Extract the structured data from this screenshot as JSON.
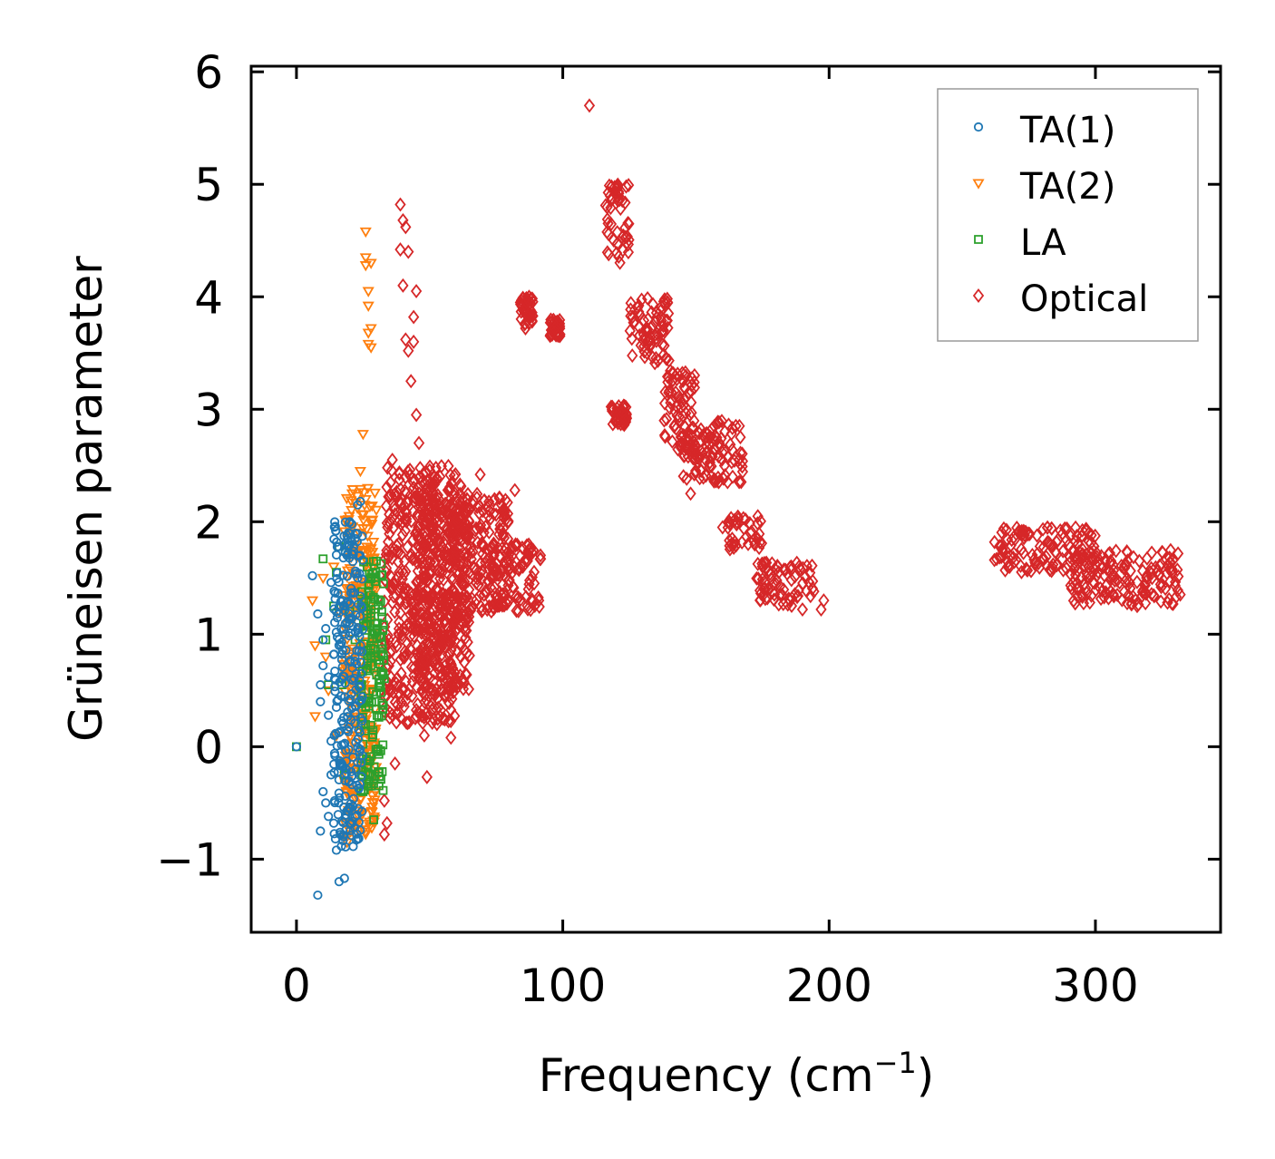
{
  "chart_data": {
    "type": "scatter",
    "title": "",
    "xlabel": "Frequency (cm",
    "xlabel_sup": "−1",
    "xlabel_close": ")",
    "ylabel": "Grüneisen parameter",
    "xlim": [
      -17,
      347
    ],
    "ylim": [
      -1.65,
      6.05
    ],
    "xticks": [
      0,
      100,
      200,
      300
    ],
    "xtick_labels": [
      "0",
      "100",
      "200",
      "300"
    ],
    "yticks": [
      -1,
      0,
      1,
      2,
      3,
      4,
      5,
      6
    ],
    "ytick_labels": [
      "−1",
      "0",
      "1",
      "2",
      "3",
      "4",
      "5",
      "6"
    ],
    "grid": false,
    "legend_position": "top-right",
    "series": [
      {
        "name": "TA(1)",
        "marker": "circle",
        "color": "#1f77b4",
        "points": [
          [
            0,
            0
          ],
          [
            6,
            1.52
          ],
          [
            8,
            1.18
          ],
          [
            8,
            -1.32
          ],
          [
            9,
            0.55
          ],
          [
            9,
            0.4
          ],
          [
            9,
            -0.75
          ],
          [
            10,
            0.95
          ],
          [
            10,
            0.72
          ],
          [
            10,
            -0.4
          ],
          [
            11,
            1.05
          ],
          [
            11,
            -0.5
          ],
          [
            12,
            0.62
          ],
          [
            12,
            0.28
          ],
          [
            12,
            -0.62
          ],
          [
            13,
            1.46
          ],
          [
            13,
            0.05
          ],
          [
            13,
            -0.25
          ],
          [
            14,
            0.82
          ],
          [
            14,
            -0.68
          ],
          [
            15,
            1.2
          ],
          [
            15,
            0.35
          ],
          [
            15,
            -0.92
          ],
          [
            16,
            -1.2
          ],
          [
            16,
            0.9
          ],
          [
            17,
            -0.15
          ],
          [
            17,
            0.6
          ],
          [
            18,
            -1.17
          ],
          [
            18,
            1.25
          ],
          [
            19,
            1.7
          ],
          [
            19,
            0.15
          ],
          [
            20,
            2.0
          ],
          [
            20,
            1.1
          ],
          [
            21,
            0.7
          ],
          [
            22,
            1.85
          ],
          [
            22,
            0.3
          ],
          [
            23,
            2.15
          ],
          [
            23,
            1.5
          ],
          [
            24,
            0.9
          ],
          [
            24,
            2.18
          ]
        ],
        "band": {
          "x": [
            14,
            25
          ],
          "y": [
            -0.9,
            2.0
          ]
        }
      },
      {
        "name": "TA(2)",
        "marker": "triangle-down",
        "color": "#ff7f0e",
        "points": [
          [
            6,
            1.3
          ],
          [
            7,
            0.27
          ],
          [
            7,
            0.9
          ],
          [
            10,
            1.5
          ],
          [
            11,
            0.8
          ],
          [
            12,
            0.5
          ],
          [
            14,
            1.6
          ],
          [
            15,
            0.1
          ],
          [
            16,
            1.2
          ],
          [
            18,
            -0.3
          ],
          [
            19,
            -0.85
          ],
          [
            20,
            0.4
          ],
          [
            22,
            1.8
          ],
          [
            24,
            2.45
          ],
          [
            25,
            2.78
          ],
          [
            26,
            2.2
          ],
          [
            26,
            4.58
          ],
          [
            26,
            4.35
          ],
          [
            26,
            4.28
          ],
          [
            27,
            4.05
          ],
          [
            27,
            3.92
          ],
          [
            27,
            3.68
          ],
          [
            27,
            3.58
          ],
          [
            28,
            1.2
          ],
          [
            28,
            4.3
          ],
          [
            28,
            3.72
          ],
          [
            28,
            3.55
          ],
          [
            29,
            1.6
          ],
          [
            30,
            0.8
          ]
        ],
        "band": {
          "x": [
            18,
            30
          ],
          "y": [
            -0.8,
            2.3
          ]
        }
      },
      {
        "name": "LA",
        "marker": "square",
        "color": "#2ca02c",
        "points": [
          [
            0,
            0
          ],
          [
            10,
            1.67
          ],
          [
            11,
            0.95
          ],
          [
            12,
            0.55
          ],
          [
            14,
            1.25
          ],
          [
            15,
            1.55
          ],
          [
            16,
            1.78
          ],
          [
            17,
            0.55
          ],
          [
            18,
            -0.25
          ],
          [
            20,
            1.2
          ],
          [
            22,
            0.95
          ],
          [
            25,
            -0.4
          ],
          [
            26,
            0.35
          ],
          [
            27,
            -0.35
          ],
          [
            28,
            -0.35
          ],
          [
            29,
            -0.65
          ],
          [
            30,
            1.65
          ],
          [
            31,
            0.6
          ],
          [
            32,
            1.2
          ]
        ],
        "band": {
          "x": [
            24,
            33
          ],
          "y": [
            -0.4,
            1.65
          ]
        }
      },
      {
        "name": "Optical",
        "marker": "diamond",
        "color": "#d62728",
        "points": [
          [
            33,
            -0.48
          ],
          [
            33,
            -0.78
          ],
          [
            34,
            -0.68
          ],
          [
            36,
            2.55
          ],
          [
            37,
            -0.15
          ],
          [
            39,
            4.82
          ],
          [
            39,
            4.42
          ],
          [
            40,
            4.68
          ],
          [
            40,
            4.1
          ],
          [
            41,
            4.62
          ],
          [
            41,
            3.62
          ],
          [
            42,
            4.4
          ],
          [
            42,
            3.52
          ],
          [
            43,
            3.25
          ],
          [
            44,
            3.82
          ],
          [
            44,
            3.6
          ],
          [
            45,
            4.05
          ],
          [
            45,
            2.95
          ],
          [
            46,
            2.7
          ],
          [
            47,
            2.2
          ],
          [
            48,
            0.1
          ],
          [
            49,
            -0.27
          ],
          [
            52,
            0.48
          ],
          [
            55,
            0.25
          ],
          [
            58,
            0.08
          ],
          [
            60,
            0.55
          ],
          [
            63,
            0.75
          ],
          [
            69,
            2.42
          ],
          [
            77,
            2.15
          ],
          [
            82,
            2.28
          ],
          [
            85,
            1.6
          ],
          [
            86,
            3.72
          ],
          [
            91,
            1.3
          ],
          [
            97,
            3.72
          ],
          [
            110,
            5.7
          ],
          [
            133,
            3.58
          ],
          [
            148,
            2.25
          ],
          [
            160,
            1.95
          ],
          [
            190,
            1.22
          ],
          [
            197,
            1.22
          ],
          [
            198,
            1.3
          ]
        ],
        "clusters": [
          {
            "x": [
              33,
              60
            ],
            "y": [
              0.2,
              2.5
            ]
          },
          {
            "x": [
              45,
              65
            ],
            "y": [
              0.5,
              2.35
            ]
          },
          {
            "x": [
              58,
              80
            ],
            "y": [
              1.2,
              2.25
            ]
          },
          {
            "x": [
              72,
              92
            ],
            "y": [
              1.2,
              1.8
            ]
          },
          {
            "x": [
              84,
              89
            ],
            "y": [
              3.75,
              4.0
            ]
          },
          {
            "x": [
              95,
              99
            ],
            "y": [
              3.65,
              3.8
            ]
          },
          {
            "x": [
              116,
              125
            ],
            "y": [
              4.3,
              5.0
            ]
          },
          {
            "x": [
              118,
              124
            ],
            "y": [
              2.85,
              3.05
            ]
          },
          {
            "x": [
              125,
              140
            ],
            "y": [
              3.4,
              4.0
            ]
          },
          {
            "x": [
              138,
              150
            ],
            "y": [
              2.55,
              3.35
            ]
          },
          {
            "x": [
              145,
              168
            ],
            "y": [
              2.35,
              2.9
            ]
          },
          {
            "x": [
              162,
              175
            ],
            "y": [
              1.75,
              2.05
            ]
          },
          {
            "x": [
              172,
              195
            ],
            "y": [
              1.25,
              1.65
            ]
          },
          {
            "x": [
              262,
              300
            ],
            "y": [
              1.55,
              1.95
            ]
          },
          {
            "x": [
              290,
              332
            ],
            "y": [
              1.25,
              1.75
            ]
          }
        ]
      }
    ]
  }
}
